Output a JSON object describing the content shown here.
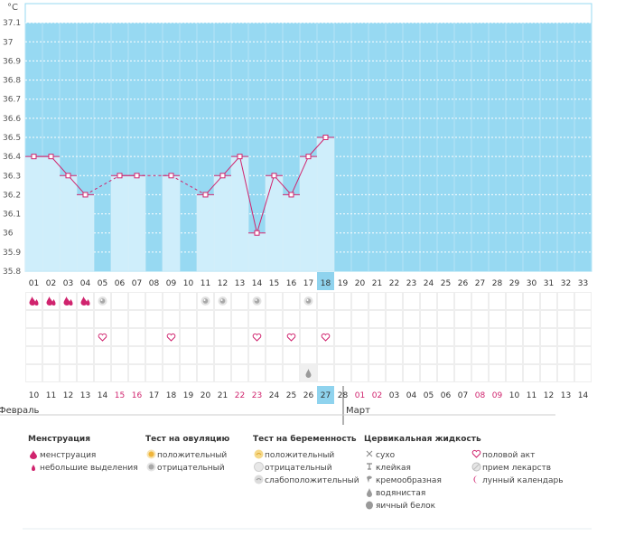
{
  "chart_data": {
    "type": "line",
    "unit_label": "°C",
    "ylim": [
      35.8,
      37.2
    ],
    "yticks": [
      "35.8",
      "35.9",
      "36",
      "36.1",
      "36.2",
      "36.3",
      "36.4",
      "36.5",
      "36.6",
      "36.7",
      "36.8",
      "36.9",
      "37",
      "37.1"
    ],
    "cycle_days": [
      "01",
      "02",
      "03",
      "04",
      "05",
      "06",
      "07",
      "08",
      "09",
      "10",
      "11",
      "12",
      "13",
      "14",
      "15",
      "16",
      "17",
      "18",
      "19",
      "20",
      "21",
      "22",
      "23",
      "24",
      "25",
      "26",
      "27",
      "28",
      "29",
      "30",
      "31",
      "32",
      "33"
    ],
    "current_day": "18",
    "temperatures": [
      36.4,
      36.4,
      36.3,
      36.2,
      null,
      36.3,
      36.3,
      null,
      36.3,
      null,
      36.2,
      36.3,
      36.4,
      36.0,
      36.3,
      36.2,
      36.4,
      36.5
    ],
    "dates": [
      {
        "label": "10",
        "red": false
      },
      {
        "label": "11",
        "red": false
      },
      {
        "label": "12",
        "red": false
      },
      {
        "label": "13",
        "red": false
      },
      {
        "label": "14",
        "red": false
      },
      {
        "label": "15",
        "red": true
      },
      {
        "label": "16",
        "red": true
      },
      {
        "label": "17",
        "red": false
      },
      {
        "label": "18",
        "red": false
      },
      {
        "label": "19",
        "red": false
      },
      {
        "label": "20",
        "red": false
      },
      {
        "label": "21",
        "red": false
      },
      {
        "label": "22",
        "red": true
      },
      {
        "label": "23",
        "red": true
      },
      {
        "label": "24",
        "red": false
      },
      {
        "label": "25",
        "red": false
      },
      {
        "label": "26",
        "red": false
      },
      {
        "label": "27",
        "red": false
      },
      {
        "label": "28",
        "red": false
      },
      {
        "label": "01",
        "red": true
      },
      {
        "label": "02",
        "red": true
      },
      {
        "label": "03",
        "red": false
      },
      {
        "label": "04",
        "red": false
      },
      {
        "label": "05",
        "red": false
      },
      {
        "label": "06",
        "red": false
      },
      {
        "label": "07",
        "red": false
      },
      {
        "label": "08",
        "red": true
      },
      {
        "label": "09",
        "red": true
      },
      {
        "label": "10",
        "red": false
      },
      {
        "label": "11",
        "red": false
      },
      {
        "label": "12",
        "red": false
      },
      {
        "label": "13",
        "red": false
      },
      {
        "label": "14",
        "red": false
      }
    ],
    "current_date_index": 17,
    "month_left": "Февраль",
    "month_right": "Март",
    "month_right_start_index": 19,
    "markers": [
      {
        "row": 0,
        "day": 0,
        "kind": "menstruation"
      },
      {
        "row": 0,
        "day": 1,
        "kind": "menstruation"
      },
      {
        "row": 0,
        "day": 2,
        "kind": "menstruation"
      },
      {
        "row": 0,
        "day": 3,
        "kind": "menstruation"
      },
      {
        "row": 0,
        "day": 4,
        "kind": "ovulation-negative"
      },
      {
        "row": 0,
        "day": 10,
        "kind": "ovulation-negative"
      },
      {
        "row": 0,
        "day": 11,
        "kind": "ovulation-negative"
      },
      {
        "row": 0,
        "day": 13,
        "kind": "ovulation-negative"
      },
      {
        "row": 0,
        "day": 16,
        "kind": "ovulation-negative"
      },
      {
        "row": 2,
        "day": 4,
        "kind": "intercourse"
      },
      {
        "row": 2,
        "day": 8,
        "kind": "intercourse"
      },
      {
        "row": 2,
        "day": 13,
        "kind": "intercourse"
      },
      {
        "row": 2,
        "day": 15,
        "kind": "intercourse"
      },
      {
        "row": 2,
        "day": 17,
        "kind": "intercourse"
      },
      {
        "row": 4,
        "day": 16,
        "kind": "fluid-watery"
      }
    ],
    "colors": {
      "sky": "#97d9f2",
      "bar": "#cfeefb",
      "line": "#d0246e",
      "grid": "#ffffff",
      "highlight": "#8fd3ee",
      "red_text": "#d0246e"
    }
  },
  "legend": {
    "menstruation": {
      "title": "Менструация",
      "items": [
        {
          "icon": "drop-large",
          "label": "менструация"
        },
        {
          "icon": "drop-small",
          "label": "небольшие выделения"
        }
      ]
    },
    "ovulation": {
      "title": "Тест на овуляцию",
      "items": [
        {
          "icon": "test-positive",
          "label": "положительный"
        },
        {
          "icon": "test-negative",
          "label": "отрицательный"
        }
      ]
    },
    "pregnancy": {
      "title": "Тест на беременность",
      "items": [
        {
          "icon": "preg-positive",
          "label": "положительный"
        },
        {
          "icon": "preg-negative",
          "label": "отрицательный"
        },
        {
          "icon": "preg-weak",
          "label": "слабоположительный"
        }
      ]
    },
    "cervical": {
      "title": "Цервикальная жидкость",
      "items": [
        {
          "icon": "cross",
          "label": "сухо"
        },
        {
          "icon": "sticky",
          "label": "клейкая"
        },
        {
          "icon": "creamy",
          "label": "кремообразная"
        },
        {
          "icon": "watery",
          "label": "водянистая"
        },
        {
          "icon": "eggwhite",
          "label": "яичный белок"
        }
      ]
    },
    "other": {
      "items": [
        {
          "icon": "heart",
          "label": "половой акт"
        },
        {
          "icon": "pill",
          "label": "прием лекарств"
        },
        {
          "icon": "moon",
          "label": "лунный календарь"
        }
      ]
    }
  }
}
